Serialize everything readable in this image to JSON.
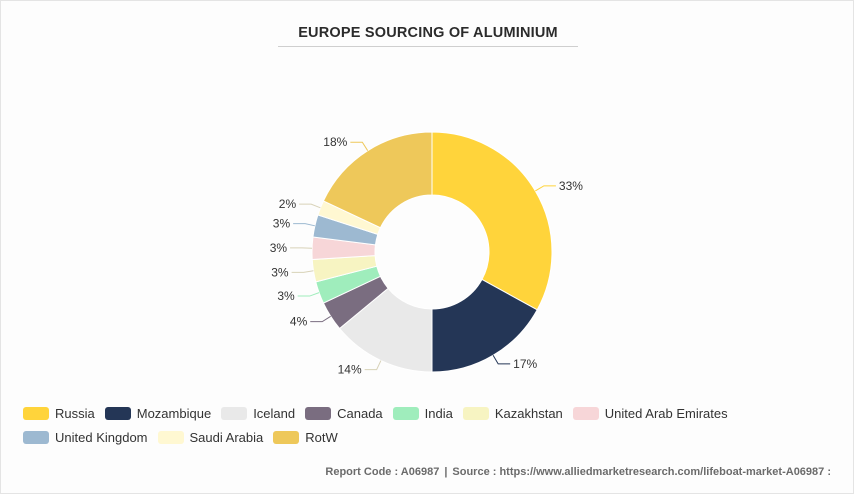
{
  "chart_data": {
    "type": "pie",
    "title": "EUROPE SOURCING OF ALUMINIUM",
    "categories": [
      "Russia",
      "Mozambique",
      "Iceland",
      "Canada",
      "India",
      "Kazakhstan",
      "United Arab Emirates",
      "United Kingdom",
      "Saudi Arabia",
      "RotW"
    ],
    "values": [
      33,
      17,
      14,
      4,
      3,
      3,
      3,
      3,
      2,
      18
    ],
    "labels": [
      "33%",
      "17%",
      "14%",
      "4%",
      "3%",
      "3%",
      "3%",
      "3%",
      "2%",
      "18%"
    ],
    "colors": [
      "#FFD43B",
      "#243656",
      "#E9E9E9",
      "#7A6D80",
      "#9FEDBC",
      "#F7F4C2",
      "#F7D6D8",
      "#9DB9D1",
      "#FFF8D2",
      "#EEC85A"
    ],
    "donut": true,
    "legend_position": "bottom"
  },
  "footer": {
    "report_code": "Report Code : A06987",
    "separator": "|",
    "source": "Source : https://www.alliedmarketresearch.com/lifeboat-market-A06987 :"
  }
}
